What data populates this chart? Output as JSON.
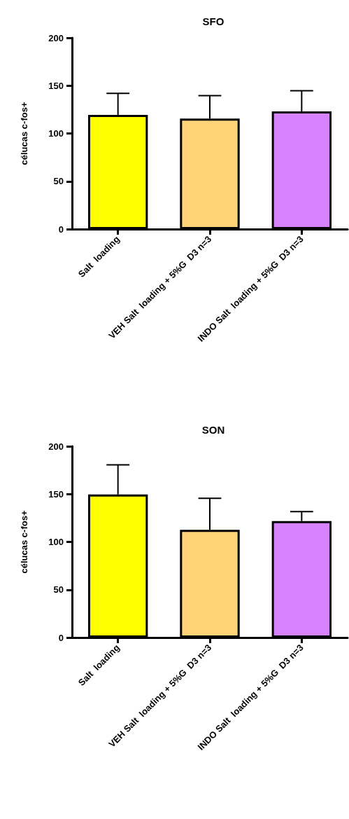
{
  "chart_data": [
    {
      "type": "bar",
      "title": "SFO",
      "ylabel": "célucas c-fos+",
      "categories": [
        "Salt  loading",
        "VEH Salt  loading + 5%G  D3 n=3",
        "INDO Salt  loading + 5%G  D3 n=3"
      ],
      "values": [
        119.5,
        115.5,
        123
      ],
      "colors": [
        "#ffff00",
        "#ffd479",
        "#d783ff"
      ],
      "errors": [
        [
          119.5,
          142
        ],
        [
          115.5,
          139.6
        ],
        [
          123,
          144.7
        ]
      ],
      "ylim": [
        0,
        200
      ],
      "yticks": [
        0,
        50,
        100,
        150,
        200
      ],
      "grid": false
    },
    {
      "type": "bar",
      "title": "SON",
      "ylabel": "célucas c-fos+",
      "categories": [
        "Salt  loading",
        "VEH Salt  loading + 5%G  D3 n=3",
        "INDO Salt  loading + 5%G  D3 n=3"
      ],
      "values": [
        149.6,
        112.7,
        121.8
      ],
      "colors": [
        "#ffff00",
        "#ffd479",
        "#d783ff"
      ],
      "errors": [
        [
          149.6,
          180.5
        ],
        [
          112.7,
          145.6
        ],
        [
          121.8,
          131.6
        ]
      ],
      "ylim": [
        0,
        200
      ],
      "yticks": [
        0,
        50,
        100,
        150,
        200
      ],
      "grid": false
    }
  ]
}
